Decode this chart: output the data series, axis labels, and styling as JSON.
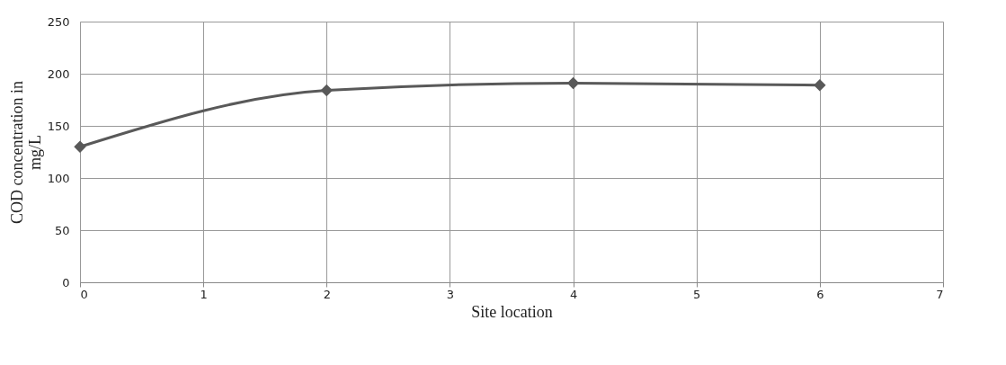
{
  "chart_data": {
    "type": "line",
    "xlabel": "Site location",
    "ylabel": "COD concentration in mg/L",
    "x": [
      0,
      2,
      4,
      6
    ],
    "series": [
      {
        "color": "#595959",
        "values": [
          130,
          184,
          191,
          189
        ]
      }
    ],
    "xlim": [
      0,
      7
    ],
    "xticks": [
      0,
      1,
      2,
      3,
      4,
      5,
      6,
      7
    ],
    "ylim": [
      0,
      250
    ],
    "yticks": [
      0,
      50,
      100,
      150,
      200,
      250
    ],
    "grid": true,
    "marker": "diamond",
    "line_style": "solid"
  }
}
